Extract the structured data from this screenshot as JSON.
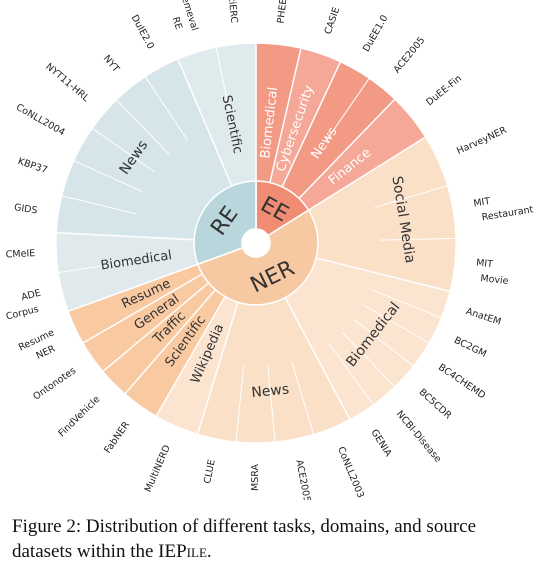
{
  "caption": {
    "label": "Figure 2:",
    "text_before": "Distribution of different tasks, domains, and source datasets within the IEP",
    "text_sc": "ile",
    "text_after": "."
  },
  "chart_data": {
    "type": "sunburst",
    "title": "Distribution of different tasks, domains, and source datasets within the IEPile",
    "colors": {
      "RE": "#b9d6dc",
      "EE": "#f08b74",
      "NER": "#f7c9a3"
    },
    "tasks": [
      {
        "name": "EE",
        "start": 0,
        "end": 58,
        "domains": [
          {
            "name": "Biomedical",
            "start": 0,
            "end": 13,
            "datasets": [
              "PHEE"
            ]
          },
          {
            "name": "Cybersecurity",
            "start": 13,
            "end": 25,
            "datasets": [
              "CASIE"
            ]
          },
          {
            "name": "News",
            "start": 25,
            "end": 44,
            "datasets": [
              "DuEE1.0",
              "ACE2005"
            ]
          },
          {
            "name": "Finance",
            "start": 44,
            "end": 58,
            "datasets": [
              "DuEE-Fin"
            ]
          }
        ]
      },
      {
        "name": "NER",
        "start": 58,
        "end": 250,
        "domains": [
          {
            "name": "Social Media",
            "start": 58,
            "end": 104,
            "datasets": [
              "HarveyNER",
              "MIT Restaurant",
              "MIT Movie"
            ]
          },
          {
            "name": "Biomedical",
            "start": 104,
            "end": 152,
            "datasets": [
              "AnatEM",
              "BC2GM",
              "BC4CHEMD",
              "BC5CDR",
              "NCBI-Disease",
              "GENIA"
            ]
          },
          {
            "name": "News",
            "start": 152,
            "end": 197,
            "datasets": [
              "CoNLL2003",
              "ACE2005",
              "MSRA",
              "CLUE"
            ]
          },
          {
            "name": "Wikipedia",
            "start": 197,
            "end": 210,
            "datasets": [
              "MultiNERD"
            ]
          },
          {
            "name": "Scientific",
            "start": 210,
            "end": 221,
            "datasets": [
              "FabNER"
            ]
          },
          {
            "name": "Traffic",
            "start": 221,
            "end": 230,
            "datasets": [
              "FindVehicle"
            ]
          },
          {
            "name": "General",
            "start": 230,
            "end": 240,
            "datasets": [
              "Ontonotes"
            ]
          },
          {
            "name": "Resume",
            "start": 240,
            "end": 250,
            "datasets": [
              "Resume NER"
            ]
          }
        ]
      },
      {
        "name": "RE",
        "start": 250,
        "end": 360,
        "domains": [
          {
            "name": "Biomedical",
            "start": 250,
            "end": 273,
            "datasets": [
              "ADE Corpus",
              "CMeIE"
            ]
          },
          {
            "name": "News",
            "start": 273,
            "end": 337,
            "datasets": [
              "GIDS",
              "KBP37",
              "CoNLL2004",
              "NYT11-HRL",
              "NYT",
              "DuIE2.0"
            ]
          },
          {
            "name": "Scientific",
            "start": 337,
            "end": 360,
            "datasets": [
              "Semeval RE",
              "SciERC"
            ]
          }
        ]
      }
    ]
  }
}
